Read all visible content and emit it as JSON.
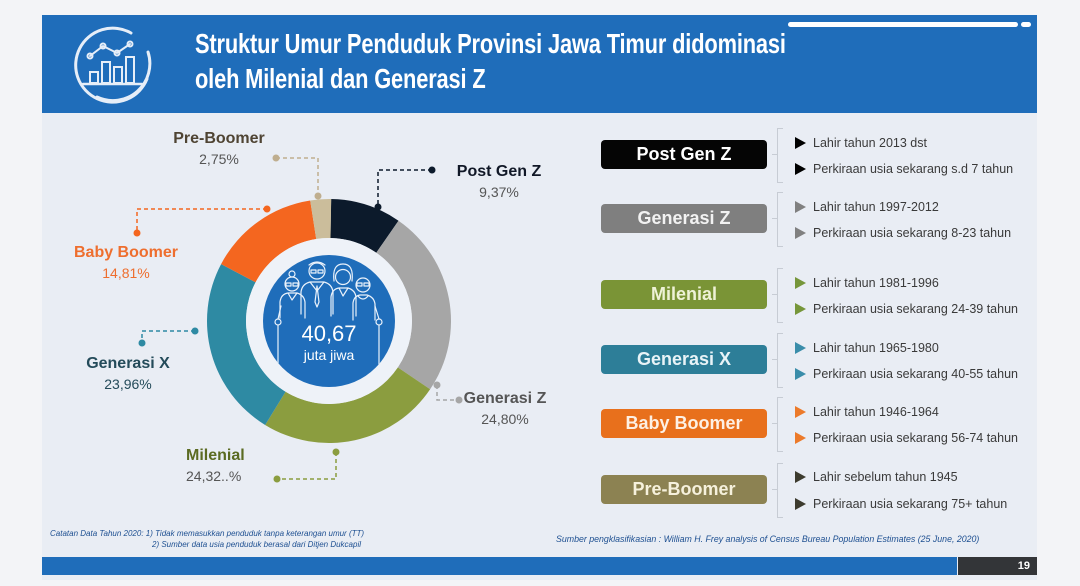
{
  "header": {
    "title_line1": "Struktur Umur Penduduk Provinsi Jawa Timur didominasi",
    "title_line2": "oleh Milenial dan Generasi Z",
    "icon": "growth-chart-icon"
  },
  "chart_data": {
    "type": "pie",
    "variant": "donut",
    "title": "Struktur Umur Penduduk Provinsi Jawa Timur",
    "center_value": "40,67",
    "center_unit": "juta jiwa",
    "categories": [
      "Post Gen Z",
      "Generasi Z",
      "Milenial",
      "Generasi X",
      "Baby Boomer",
      "Pre-Boomer"
    ],
    "values": [
      9.37,
      24.8,
      24.32,
      23.96,
      14.81,
      2.75
    ],
    "segments": [
      {
        "key": "post-gen-z",
        "label": "Post Gen Z",
        "value": 9.37,
        "display": "9,37%",
        "color": "#0c1a2b",
        "label_color": "#111827"
      },
      {
        "key": "generasi-z",
        "label": "Generasi Z",
        "value": 24.8,
        "display": "24,80%",
        "color": "#a6a6a6",
        "label_color": "#555555"
      },
      {
        "key": "milenial",
        "label": "Milenial",
        "value": 24.32,
        "display": "24,32..%",
        "color": "#8b9d3f",
        "label_color": "#5b6b22"
      },
      {
        "key": "generasi-x",
        "label": "Generasi X",
        "value": 23.96,
        "display": "23,96%",
        "color": "#2e8aa3",
        "label_color": "#244b5a"
      },
      {
        "key": "baby-boomer",
        "label": "Baby Boomer",
        "value": 14.81,
        "display": "14,81%",
        "color": "#f4661f",
        "label_color": "#ee6e2e"
      },
      {
        "key": "pre-boomer",
        "label": "Pre-Boomer",
        "value": 2.75,
        "display": "2,75%",
        "color": "#cbbd9b",
        "label_color": "#4f4433"
      }
    ]
  },
  "legend": {
    "items": [
      {
        "label": "Post Gen Z",
        "box_color": "#050505",
        "text_color": "#ffffff",
        "bullet_color": "#000000",
        "bullets": [
          "Lahir tahun 2013 dst",
          "Perkiraan usia sekarang s.d 7 tahun"
        ]
      },
      {
        "label": "Generasi Z",
        "box_color": "#7f7f7f",
        "text_color": "#f2f2f2",
        "bullet_color": "#808080",
        "bullets": [
          "Lahir tahun 1997-2012",
          "Perkiraan usia sekarang 8-23 tahun"
        ]
      },
      {
        "label": "Milenial",
        "box_color": "#7a9436",
        "text_color": "#eef2d6",
        "bullet_color": "#76963a",
        "bullets": [
          "Lahir tahun 1981-1996",
          "Perkiraan usia sekarang 24-39 tahun"
        ]
      },
      {
        "label": "Generasi X",
        "box_color": "#2d7e98",
        "text_color": "#e8f3f7",
        "bullet_color": "#3a8daa",
        "bullets": [
          "Lahir tahun 1965-1980",
          "Perkiraan usia sekarang 40-55 tahun"
        ]
      },
      {
        "label": "Baby Boomer",
        "box_color": "#e8701c",
        "text_color": "#fdf0e4",
        "bullet_color": "#ec7a2a",
        "bullets": [
          "Lahir tahun 1946-1964",
          "Perkiraan usia sekarang 56-74 tahun"
        ]
      },
      {
        "label": "Pre-Boomer",
        "box_color": "#8c8252",
        "text_color": "#f6f1dc",
        "bullet_color": "#3d3b2e",
        "bullets": [
          "Lahir sebelum tahun 1945",
          "Perkiraan usia sekarang 75+ tahun"
        ]
      }
    ]
  },
  "notes": {
    "line1": "Catatan Data Tahun 2020: 1)  Tidak memasukkan penduduk tanpa keterangan umur (TT)",
    "line2": "2) Sumber data usia penduduk berasal dari Ditjen Dukcapil"
  },
  "source": "Sumber pengklasifikasian : William H. Frey analysis of Census Bureau Population Estimates (25 June, 2020)",
  "footer": {
    "page_number": "19"
  },
  "colors": {
    "header_blue": "#1f6dba",
    "slide_bg": "#e9edf4"
  }
}
